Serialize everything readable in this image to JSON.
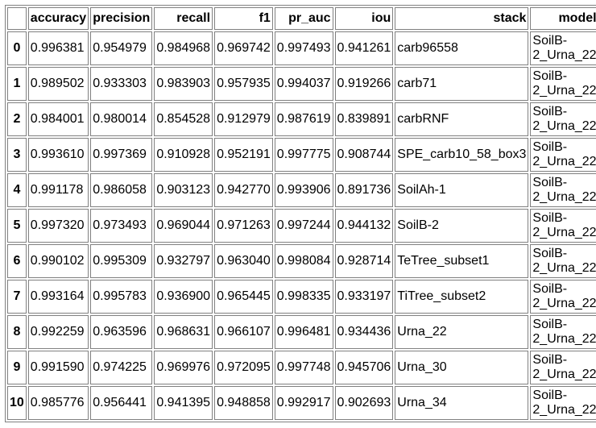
{
  "table": {
    "columns": [
      "",
      "accuracy",
      "precision",
      "recall",
      "f1",
      "pr_auc",
      "iou",
      "stack",
      "model"
    ],
    "rows": [
      {
        "index": "0",
        "accuracy": "0.996381",
        "precision": "0.954979",
        "recall": "0.984968",
        "f1": "0.969742",
        "pr_auc": "0.997493",
        "iou": "0.941261",
        "stack": "carb96558",
        "model": "SoilB-2_Urna_22"
      },
      {
        "index": "1",
        "accuracy": "0.989502",
        "precision": "0.933303",
        "recall": "0.983903",
        "f1": "0.957935",
        "pr_auc": "0.994037",
        "iou": "0.919266",
        "stack": "carb71",
        "model": "SoilB-2_Urna_22"
      },
      {
        "index": "2",
        "accuracy": "0.984001",
        "precision": "0.980014",
        "recall": "0.854528",
        "f1": "0.912979",
        "pr_auc": "0.987619",
        "iou": "0.839891",
        "stack": "carbRNF",
        "model": "SoilB-2_Urna_22"
      },
      {
        "index": "3",
        "accuracy": "0.993610",
        "precision": "0.997369",
        "recall": "0.910928",
        "f1": "0.952191",
        "pr_auc": "0.997775",
        "iou": "0.908744",
        "stack": "SPE_carb10_58_box3",
        "model": "SoilB-2_Urna_22"
      },
      {
        "index": "4",
        "accuracy": "0.991178",
        "precision": "0.986058",
        "recall": "0.903123",
        "f1": "0.942770",
        "pr_auc": "0.993906",
        "iou": "0.891736",
        "stack": "SoilAh-1",
        "model": "SoilB-2_Urna_22"
      },
      {
        "index": "5",
        "accuracy": "0.997320",
        "precision": "0.973493",
        "recall": "0.969044",
        "f1": "0.971263",
        "pr_auc": "0.997244",
        "iou": "0.944132",
        "stack": "SoilB-2",
        "model": "SoilB-2_Urna_22"
      },
      {
        "index": "6",
        "accuracy": "0.990102",
        "precision": "0.995309",
        "recall": "0.932797",
        "f1": "0.963040",
        "pr_auc": "0.998084",
        "iou": "0.928714",
        "stack": "TeTree_subset1",
        "model": "SoilB-2_Urna_22"
      },
      {
        "index": "7",
        "accuracy": "0.993164",
        "precision": "0.995783",
        "recall": "0.936900",
        "f1": "0.965445",
        "pr_auc": "0.998335",
        "iou": "0.933197",
        "stack": "TiTree_subset2",
        "model": "SoilB-2_Urna_22"
      },
      {
        "index": "8",
        "accuracy": "0.992259",
        "precision": "0.963596",
        "recall": "0.968631",
        "f1": "0.966107",
        "pr_auc": "0.996481",
        "iou": "0.934436",
        "stack": "Urna_22",
        "model": "SoilB-2_Urna_22"
      },
      {
        "index": "9",
        "accuracy": "0.991590",
        "precision": "0.974225",
        "recall": "0.969976",
        "f1": "0.972095",
        "pr_auc": "0.997748",
        "iou": "0.945706",
        "stack": "Urna_30",
        "model": "SoilB-2_Urna_22"
      },
      {
        "index": "10",
        "accuracy": "0.985776",
        "precision": "0.956441",
        "recall": "0.941395",
        "f1": "0.948858",
        "pr_auc": "0.992917",
        "iou": "0.902693",
        "stack": "Urna_34",
        "model": "SoilB-2_Urna_22"
      }
    ]
  }
}
